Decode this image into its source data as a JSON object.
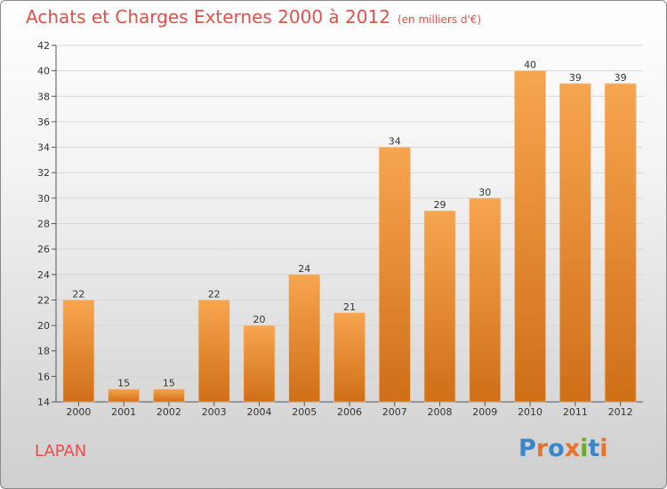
{
  "chart_data": {
    "type": "bar",
    "title": "Achats et Charges Externes 2000 à 2012",
    "subtitle": "(en milliers d'€)",
    "categories": [
      "2000",
      "2001",
      "2002",
      "2003",
      "2004",
      "2005",
      "2006",
      "2007",
      "2008",
      "2009",
      "2010",
      "2011",
      "2012"
    ],
    "values": [
      22,
      15,
      15,
      22,
      20,
      24,
      21,
      34,
      29,
      30,
      40,
      39,
      39
    ],
    "ylim": [
      14,
      42
    ],
    "yticks": [
      14,
      16,
      18,
      20,
      22,
      24,
      26,
      28,
      30,
      32,
      34,
      36,
      38,
      40,
      42
    ],
    "grid": true,
    "bar_color_top": "#f7a54f",
    "bar_color_bottom": "#cf6f18"
  },
  "footer": {
    "commune": "LAPAN",
    "brand": "Proxiti",
    "brand_colors": [
      "#3a86c8",
      "#e8742c",
      "#3a86c8",
      "#e8742c",
      "#6aab2f",
      "#3a86c8",
      "#e8742c"
    ]
  }
}
